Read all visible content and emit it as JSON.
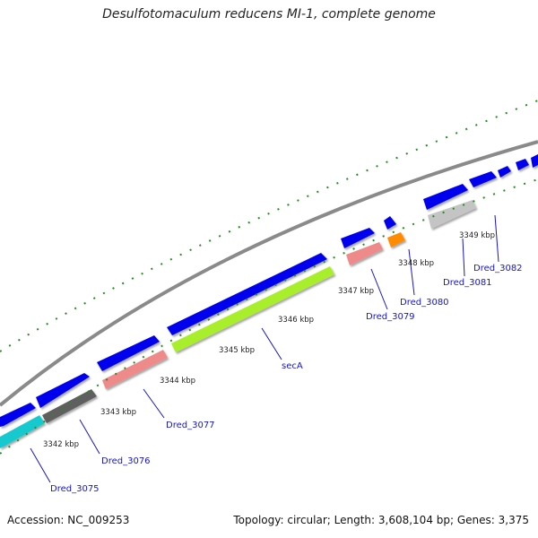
{
  "title": "Desulfotomaculum reducens MI-1, complete genome",
  "footer": {
    "accession": "Accession: NC_009253",
    "genome_info": "Topology: circular; Length: 3,608,104 bp; Genes: 3,375"
  },
  "tick_labels": [
    "3342 kbp",
    "3343 kbp",
    "3344 kbp",
    "3345 kbp",
    "3346 kbp",
    "3347 kbp",
    "3348 kbp",
    "3349 kbp"
  ],
  "gene_labels": [
    "Dred_3075",
    "Dred_3076",
    "Dred_3077",
    "secA",
    "Dred_3079",
    "Dred_3080",
    "Dred_3081",
    "Dred_3082"
  ],
  "colors": {
    "forward_cds": "#0000ee",
    "backbone": "#8a8a8a",
    "ticks": "#1f8f1f",
    "label_text": "#1515c8",
    "cyan": "#17c9cf",
    "dark_gray": "#5f5f5f",
    "salmon": "#ee8a8a",
    "lime": "#a8ee2a",
    "orange": "#ff8c00",
    "light_gray": "#c4c4c4"
  }
}
